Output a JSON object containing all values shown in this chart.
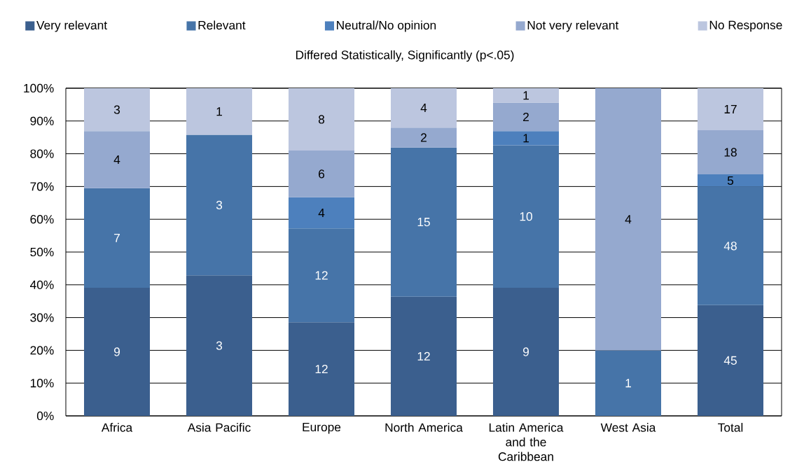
{
  "chart_data": {
    "type": "bar",
    "title": "Differed Statistically, Significantly (p<.05)",
    "categories": [
      "Africa",
      "Asia Pacific",
      "Europe",
      "North America",
      "Latin America and the Caribbean",
      "West Asia",
      "Total"
    ],
    "stacked": true,
    "series": [
      {
        "name": "Very relevant",
        "color": "#3b5f8e",
        "values": [
          39.1,
          42.9,
          28.6,
          36.4,
          39.1,
          0,
          33.8
        ]
      },
      {
        "name": "Relevant",
        "color": "#4674a8",
        "values": [
          30.4,
          42.9,
          28.6,
          45.5,
          43.5,
          20,
          36.1
        ]
      },
      {
        "name": "Neutral/No opinion",
        "color": "#4d80bd",
        "values": [
          0,
          0,
          9.5,
          0,
          4.3,
          0,
          3.8
        ]
      },
      {
        "name": "Not very relevant",
        "color": "#95a9cf",
        "values": [
          17.4,
          0,
          14.3,
          6.1,
          8.7,
          80,
          13.5
        ]
      },
      {
        "name": "No Response",
        "color": "#bcc6df",
        "values": [
          13.1,
          14.2,
          19.0,
          12.0,
          4.4,
          0,
          12.8
        ]
      }
    ],
    "annotations": [
      "9",
      "3",
      "12",
      "12",
      "9",
      "45",
      "7",
      "3",
      "12",
      "15",
      "10",
      "1",
      "48",
      "4",
      "1",
      "5",
      "4",
      "6",
      "2",
      "2",
      "4",
      "18",
      "3",
      "1",
      "8",
      "4",
      "1",
      "17"
    ],
    "ylim": [
      0,
      100
    ],
    "yticks": [
      {
        "value": 0,
        "label": "0%"
      },
      {
        "value": 10,
        "label": "10%"
      },
      {
        "value": 20,
        "label": "20%"
      },
      {
        "value": 30,
        "label": "30%"
      },
      {
        "value": 40,
        "label": "40%"
      },
      {
        "value": 50,
        "label": "50%"
      },
      {
        "value": 60,
        "label": "60%"
      },
      {
        "value": 70,
        "label": "70%"
      },
      {
        "value": 80,
        "label": "80%"
      },
      {
        "value": 90,
        "label": "90%"
      },
      {
        "value": 100,
        "label": "100%"
      }
    ],
    "grid": "y",
    "legend": "top"
  }
}
